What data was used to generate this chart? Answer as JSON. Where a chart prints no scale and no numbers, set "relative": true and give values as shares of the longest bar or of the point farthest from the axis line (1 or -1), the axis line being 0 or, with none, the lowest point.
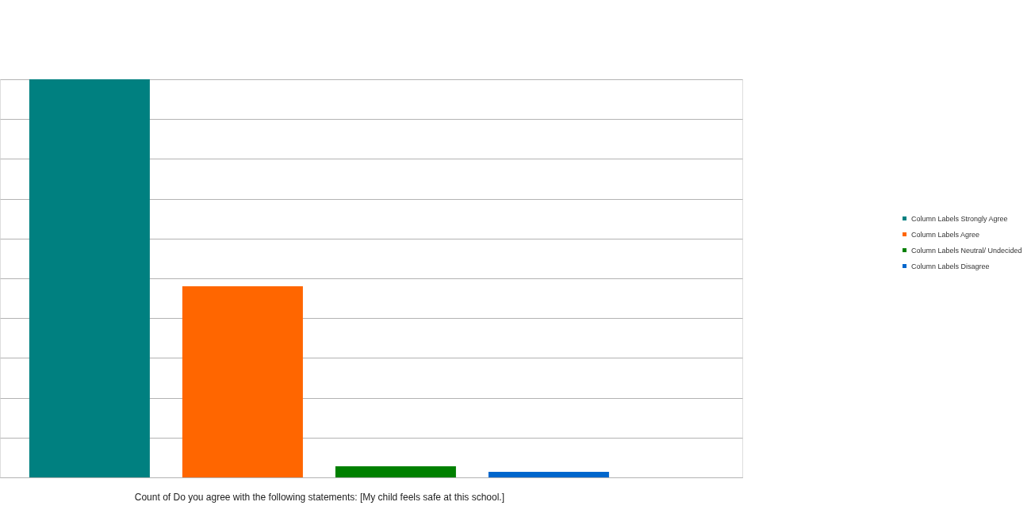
{
  "chart_data": {
    "type": "bar",
    "relative": true,
    "stacked": true,
    "grid": "y",
    "legend": "right",
    "xlabel": "Count of Do you agree with the following statements: [My child feels safe at this school.]",
    "categories": [
      null,
      null,
      null,
      null
    ],
    "series": [
      {
        "name": "Column Labels Strongly Agree",
        "color": "#008080",
        "values": [
          1,
          null,
          null,
          null
        ]
      },
      {
        "name": "Column Labels Agree",
        "color": "#ff6600",
        "values": [
          null,
          0.48,
          null,
          null
        ]
      },
      {
        "name": "Column Labels Neutral/ Undecided",
        "color": "#008000",
        "values": [
          null,
          null,
          0.028,
          null
        ]
      },
      {
        "name": "Column Labels Disagree",
        "color": "#0066cc",
        "values": [
          null,
          null,
          null,
          0.014
        ]
      }
    ]
  }
}
